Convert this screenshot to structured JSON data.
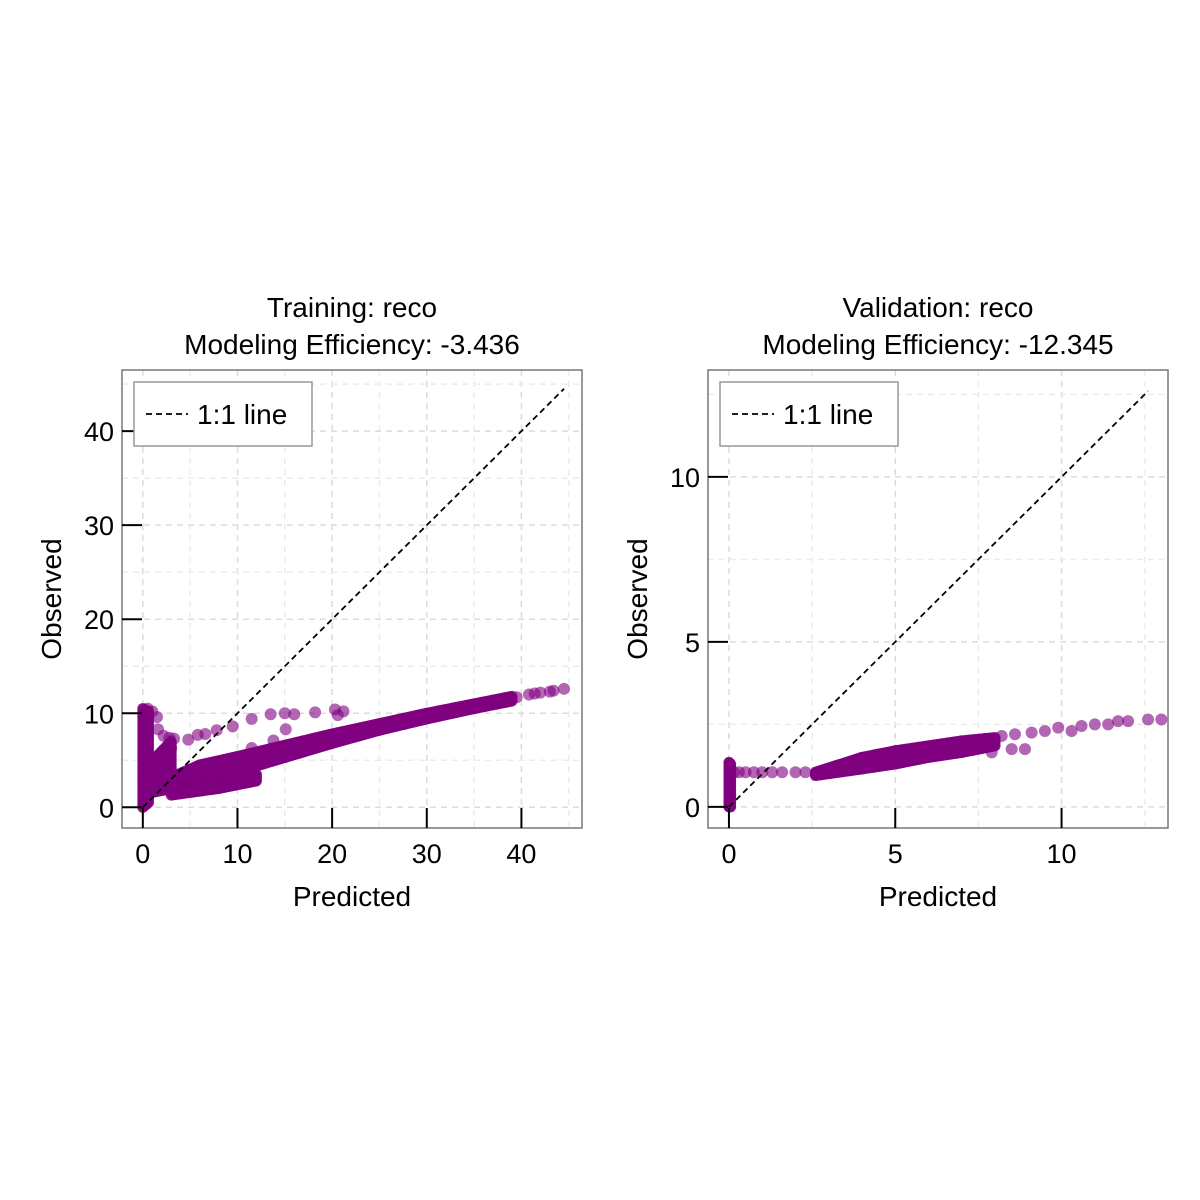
{
  "chart_data": [
    {
      "type": "scatter",
      "title": "Training: reco",
      "subtitle": "Modeling Efficiency: -3.436",
      "xlabel": "Predicted",
      "ylabel": "Observed",
      "xlim": [
        -2.2,
        46.4
      ],
      "ylim": [
        -2.2,
        46.5
      ],
      "xticks": [
        0,
        10,
        20,
        30,
        40
      ],
      "yticks": [
        0,
        10,
        20,
        30,
        40
      ],
      "xtick_labels": [
        "0",
        "10",
        "20",
        "30",
        "40"
      ],
      "ytick_labels": [
        "0",
        "10",
        "20",
        "30",
        "40"
      ],
      "minor_step": 5,
      "grid": true,
      "legend": {
        "label": "1:1 line",
        "placement": "top-left"
      },
      "ref_line": [
        0,
        44.5
      ],
      "marker_color": "#800080",
      "dense_bands": [
        {
          "x": [
            0,
            0.6
          ],
          "ylow": [
            0,
            0.5
          ],
          "yhigh": [
            10.5,
            10.2
          ]
        },
        {
          "x": [
            0.6,
            3
          ],
          "ylow": [
            1.5,
            2.0
          ],
          "yhigh": [
            4.5,
            7.0
          ]
        },
        {
          "x": [
            3.5,
            6,
            10,
            15,
            20,
            25,
            30,
            35,
            39
          ],
          "ylow": [
            1.4,
            2.6,
            3.8,
            5.3,
            6.8,
            8.2,
            9.4,
            10.5,
            11.3
          ],
          "yhigh": [
            3.4,
            4.5,
            5.4,
            6.6,
            7.8,
            8.9,
            10.0,
            11.0,
            11.8
          ]
        },
        {
          "x": [
            3,
            8,
            12
          ],
          "ylow": [
            1.3,
            2.0,
            2.8
          ],
          "yhigh": [
            2.8,
            3.2,
            3.5
          ]
        }
      ],
      "points": [
        [
          0.5,
          10.5
        ],
        [
          1,
          10.2
        ],
        [
          1.5,
          9.6
        ],
        [
          1.6,
          8.3
        ],
        [
          2.2,
          7.6
        ],
        [
          2.8,
          7.4
        ],
        [
          3,
          6.3
        ],
        [
          3.3,
          7.3
        ],
        [
          4.8,
          7.2
        ],
        [
          5.8,
          7.7
        ],
        [
          6.6,
          7.8
        ],
        [
          7.8,
          8.2
        ],
        [
          9.5,
          8.6
        ],
        [
          11.5,
          9.4
        ],
        [
          13.5,
          9.9
        ],
        [
          15,
          10
        ],
        [
          16,
          9.9
        ],
        [
          18.2,
          10.1
        ],
        [
          20.3,
          10.4
        ],
        [
          20.6,
          9.8
        ],
        [
          21.2,
          10.2
        ],
        [
          15.1,
          8.3
        ],
        [
          13.8,
          7.1
        ],
        [
          11.5,
          6.3
        ],
        [
          39.5,
          11.7
        ],
        [
          40.8,
          12
        ],
        [
          41.4,
          12.1
        ],
        [
          42,
          12.2
        ],
        [
          43,
          12.3
        ],
        [
          43.4,
          12.4
        ],
        [
          44.5,
          12.6
        ]
      ]
    },
    {
      "type": "scatter",
      "title": "Validation: reco",
      "subtitle": "Modeling Efficiency: -12.345",
      "xlabel": "Predicted",
      "ylabel": "Observed",
      "xlim": [
        -0.63,
        13.2
      ],
      "ylim": [
        -0.64,
        13.24
      ],
      "xticks": [
        0,
        5,
        10
      ],
      "yticks": [
        0,
        5,
        10
      ],
      "xtick_labels": [
        "0",
        "5",
        "10"
      ],
      "ytick_labels": [
        "0",
        "5",
        "10"
      ],
      "minor_step": 2.5,
      "grid": true,
      "legend": {
        "label": "1:1 line",
        "placement": "top-left"
      },
      "ref_line": [
        0,
        12.6
      ],
      "marker_color": "#800080",
      "dense_bands": [
        {
          "x": [
            0,
            0.05
          ],
          "ylow": [
            0,
            0
          ],
          "yhigh": [
            1.35,
            1.3
          ]
        },
        {
          "x": [
            2.6,
            4,
            5,
            6,
            7,
            8
          ],
          "ylow": [
            0.95,
            1.15,
            1.3,
            1.5,
            1.65,
            1.85
          ],
          "yhigh": [
            1.05,
            1.5,
            1.7,
            1.85,
            2.0,
            2.1
          ]
        }
      ],
      "points": [
        [
          0.15,
          1.05
        ],
        [
          0.3,
          1.05
        ],
        [
          0.5,
          1.05
        ],
        [
          0.75,
          1.05
        ],
        [
          1.0,
          1.05
        ],
        [
          1.3,
          1.05
        ],
        [
          1.6,
          1.05
        ],
        [
          2.0,
          1.05
        ],
        [
          2.3,
          1.05
        ],
        [
          7.9,
          1.65
        ],
        [
          8.5,
          1.75
        ],
        [
          8.9,
          1.75
        ],
        [
          8.2,
          2.15
        ],
        [
          8.6,
          2.2
        ],
        [
          9.1,
          2.25
        ],
        [
          9.5,
          2.3
        ],
        [
          9.9,
          2.4
        ],
        [
          10.3,
          2.3
        ],
        [
          10.6,
          2.45
        ],
        [
          11.0,
          2.5
        ],
        [
          11.4,
          2.5
        ],
        [
          11.7,
          2.6
        ],
        [
          12.0,
          2.6
        ],
        [
          12.6,
          2.65
        ],
        [
          13.0,
          2.65
        ]
      ]
    }
  ]
}
